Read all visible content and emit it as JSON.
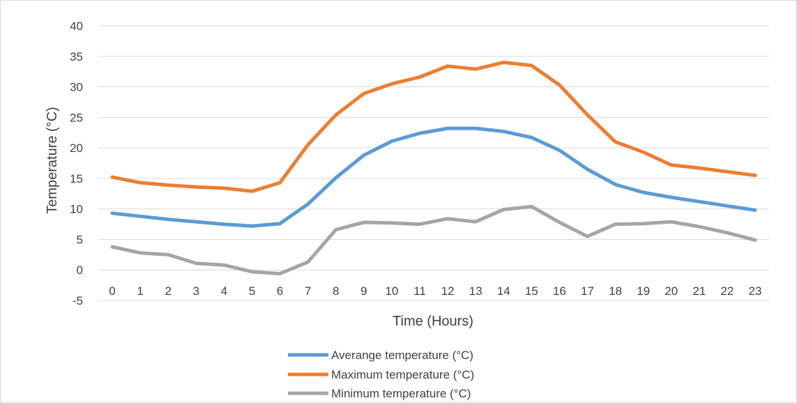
{
  "chart_data": {
    "type": "line",
    "title": "",
    "xlabel": "Time (Hours)",
    "ylabel": "Temperature (°C)",
    "ylim": [
      -5,
      40
    ],
    "yticks": [
      "-5",
      "0",
      "5",
      "10",
      "15",
      "20",
      "25",
      "30",
      "35",
      "40"
    ],
    "categories": [
      "0",
      "1",
      "2",
      "3",
      "4",
      "5",
      "6",
      "7",
      "8",
      "9",
      "10",
      "11",
      "12",
      "13",
      "14",
      "15",
      "16",
      "17",
      "18",
      "19",
      "20",
      "21",
      "22",
      "23"
    ],
    "grid": true,
    "legend_position": "bottom",
    "series": [
      {
        "name": "Averange temperature (°C)",
        "color": "#5B9BD5",
        "values": [
          9.3,
          8.8,
          8.3,
          7.9,
          7.5,
          7.2,
          7.6,
          10.8,
          15.1,
          18.8,
          21.1,
          22.4,
          23.2,
          23.2,
          22.7,
          21.7,
          19.6,
          16.5,
          14.0,
          12.7,
          11.9,
          11.2,
          10.5,
          9.8
        ]
      },
      {
        "name": "Maximum temperature (°C)",
        "color": "#ED7D31",
        "values": [
          15.2,
          14.3,
          13.9,
          13.6,
          13.4,
          12.9,
          14.3,
          20.5,
          25.4,
          28.9,
          30.5,
          31.6,
          33.4,
          32.9,
          34.0,
          33.5,
          30.3,
          25.4,
          21.0,
          19.3,
          17.2,
          16.7,
          16.1,
          15.5
        ]
      },
      {
        "name": "Minimum temperature (°C)",
        "color": "#A5A5A5",
        "values": [
          3.8,
          2.8,
          2.5,
          1.1,
          0.8,
          -0.3,
          -0.6,
          1.3,
          6.6,
          7.8,
          7.7,
          7.5,
          8.4,
          7.9,
          9.9,
          10.4,
          7.8,
          5.5,
          7.5,
          7.6,
          7.9,
          7.1,
          6.1,
          4.9
        ]
      }
    ]
  }
}
